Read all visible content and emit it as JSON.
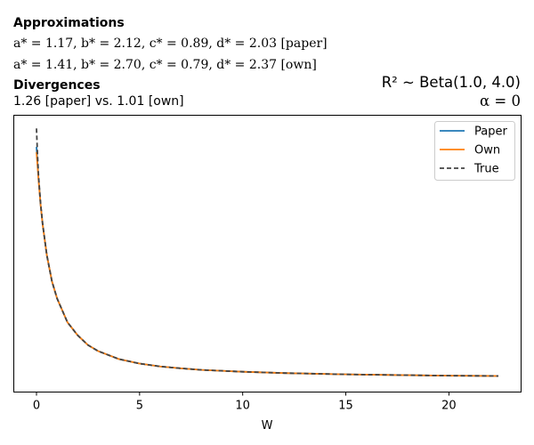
{
  "header": {
    "approx_heading": "Approximations",
    "approx_paper": "a* = 1.17, b* = 2.12, c* = 0.89, d* = 2.03 [paper]",
    "approx_own": "a* = 1.41, b* = 2.70, c* = 0.79, d* = 2.37 [own]",
    "div_heading": "Divergences",
    "div_values": "1.26 [paper] vs. 1.01 [own]",
    "dist_title": "R² ∼  Beta(1.0, 4.0)",
    "alpha_title": "α = 0"
  },
  "chart_data": {
    "type": "line",
    "xlabel": "W",
    "ylabel": "",
    "xlim": [
      -1.1,
      23.5
    ],
    "ylim": [
      -0.05,
      1.0
    ],
    "x_ticks": [
      0,
      5,
      10,
      15,
      20
    ],
    "y_ticks_visible": false,
    "grid": false,
    "legend_position": "top-right",
    "x": [
      0.0,
      0.05,
      0.1,
      0.2,
      0.3,
      0.5,
      0.75,
      1.0,
      1.5,
      2.0,
      2.5,
      3.0,
      4.0,
      5.0,
      6.0,
      7.0,
      8.0,
      10.0,
      12.0,
      15.0,
      18.0,
      20.0,
      22.4
    ],
    "series": [
      {
        "name": "Paper",
        "color": "#1f77b4",
        "dash": "solid",
        "values": [
          0.88,
          0.82,
          0.76,
          0.66,
          0.585,
          0.47,
          0.37,
          0.305,
          0.215,
          0.165,
          0.128,
          0.105,
          0.075,
          0.058,
          0.047,
          0.04,
          0.034,
          0.027,
          0.022,
          0.017,
          0.014,
          0.012,
          0.011
        ]
      },
      {
        "name": "Own",
        "color": "#ff7f0e",
        "dash": "solid",
        "values": [
          0.86,
          0.81,
          0.755,
          0.66,
          0.585,
          0.47,
          0.37,
          0.305,
          0.215,
          0.165,
          0.128,
          0.105,
          0.075,
          0.058,
          0.047,
          0.04,
          0.034,
          0.027,
          0.022,
          0.017,
          0.014,
          0.012,
          0.011
        ]
      },
      {
        "name": "True",
        "color": "#444444",
        "dash": "dashed",
        "values": [
          0.95,
          0.85,
          0.77,
          0.665,
          0.588,
          0.47,
          0.37,
          0.305,
          0.215,
          0.165,
          0.128,
          0.105,
          0.075,
          0.058,
          0.047,
          0.04,
          0.034,
          0.027,
          0.022,
          0.017,
          0.014,
          0.012,
          0.011
        ]
      }
    ]
  }
}
